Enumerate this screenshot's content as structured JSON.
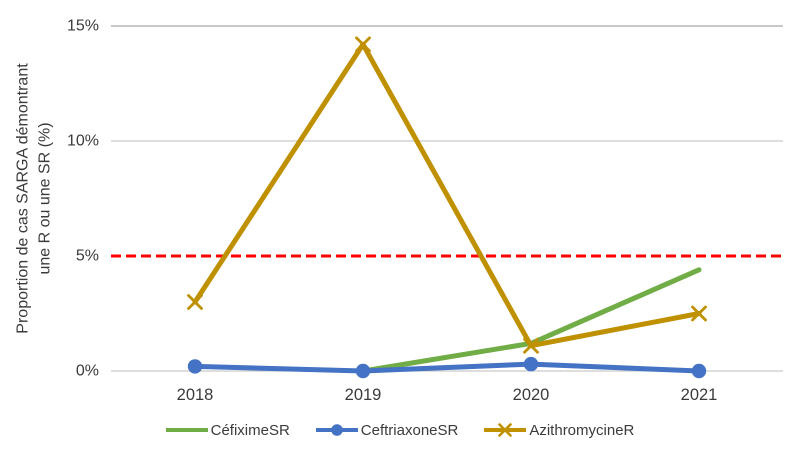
{
  "chart_data": {
    "type": "line",
    "title": "",
    "ylabel_line1": "Proportion de cas SARGA démontrant",
    "ylabel_line2": "une R ou une SR (%)",
    "x": [
      "2018",
      "2019",
      "2020",
      "2021"
    ],
    "ylim": [
      0,
      15
    ],
    "yticks": [
      {
        "value": 0,
        "label": "0%"
      },
      {
        "value": 5,
        "label": "5%"
      },
      {
        "value": 10,
        "label": "10%"
      },
      {
        "value": 15,
        "label": "15%"
      }
    ],
    "grid": true,
    "legend_position": "bottom",
    "series": [
      {
        "name": "CéfiximeSR",
        "color": "#70AD47",
        "marker": "none",
        "values": [
          null,
          0,
          1.2,
          4.4
        ]
      },
      {
        "name": "CeftriaxoneSR",
        "color": "#4472C4",
        "marker": "circle",
        "values": [
          0.2,
          0,
          0.3,
          0
        ]
      },
      {
        "name": "AzithromycineR",
        "color": "#BF9000",
        "marker": "x",
        "values": [
          3.0,
          14.2,
          1.1,
          2.5
        ]
      }
    ],
    "threshold": {
      "value": 5,
      "color": "#FF0000",
      "style": "dashed"
    }
  },
  "colors": {
    "gridline": "#C9C9C9",
    "gridline_top": "#A6A6A6",
    "text": "#3B3B3B",
    "background": "#FFFFFF"
  }
}
